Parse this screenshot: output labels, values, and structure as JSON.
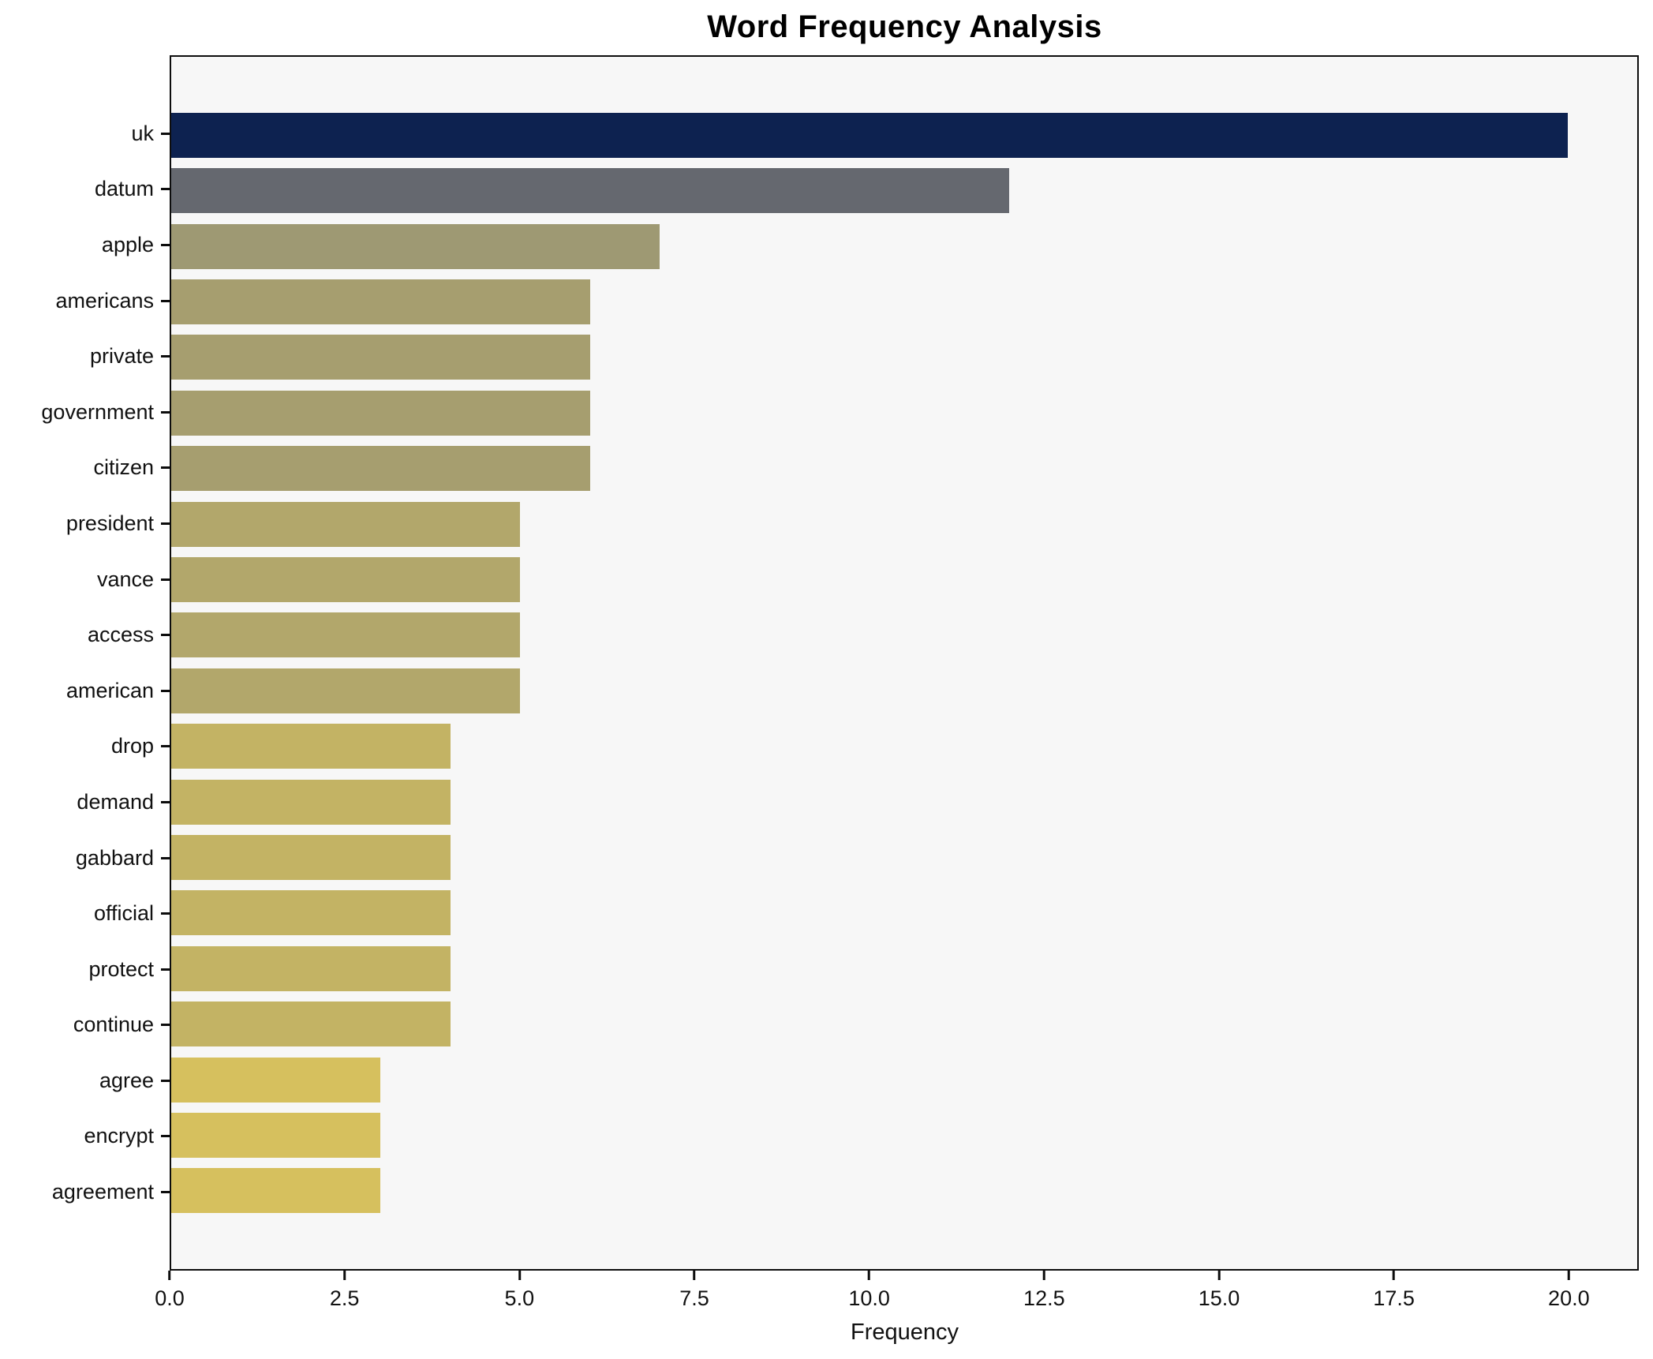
{
  "chart_data": {
    "type": "bar",
    "orientation": "horizontal",
    "title": "Word Frequency Analysis",
    "xlabel": "Frequency",
    "ylabel": "",
    "categories": [
      "uk",
      "datum",
      "apple",
      "americans",
      "private",
      "government",
      "citizen",
      "president",
      "vance",
      "access",
      "american",
      "drop",
      "demand",
      "gabbard",
      "official",
      "protect",
      "continue",
      "agree",
      "encrypt",
      "agreement"
    ],
    "values": [
      20,
      12,
      7,
      6,
      6,
      6,
      6,
      5,
      5,
      5,
      5,
      4,
      4,
      4,
      4,
      4,
      4,
      3,
      3,
      3
    ],
    "bar_colors": [
      "#0d2250",
      "#65686f",
      "#9e9973",
      "#a69e6f",
      "#a69e6f",
      "#a69e6f",
      "#a69e6f",
      "#b2a76b",
      "#b2a76b",
      "#b2a76b",
      "#b2a76b",
      "#c3b364",
      "#c3b364",
      "#c3b364",
      "#c3b364",
      "#c3b364",
      "#c3b364",
      "#d6c05e",
      "#d6c05e",
      "#d6c05e"
    ],
    "x_ticks": [
      0.0,
      2.5,
      5.0,
      7.5,
      10.0,
      12.5,
      15.0,
      17.5,
      20.0
    ],
    "xlim": [
      0,
      21
    ],
    "grid": false,
    "legend": "none",
    "plot_background": "#f7f7f7",
    "figure_background": "#ffffff",
    "frame_color": "#0d0d0d"
  }
}
